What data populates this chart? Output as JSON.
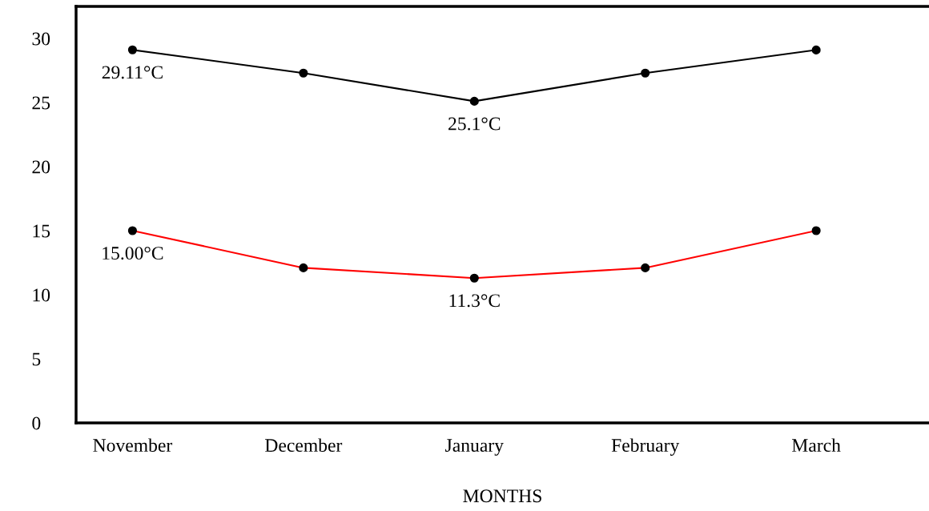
{
  "chart_data": {
    "type": "line",
    "xlabel": "MONTHS",
    "categories": [
      "November",
      "December",
      "January",
      "February",
      "March"
    ],
    "series": [
      {
        "color": "#000000",
        "values": [
          29.11,
          27.3,
          25.1,
          27.3,
          29.1
        ],
        "value_labels": [
          "29.11°C",
          null,
          "25.1°C",
          null,
          null
        ]
      },
      {
        "color": "#ff0000",
        "values": [
          15.0,
          12.1,
          11.3,
          12.1,
          15.0
        ],
        "value_labels": [
          "15.00°C",
          null,
          "11.3°C",
          null,
          null
        ]
      }
    ],
    "ylim": [
      0,
      32.5
    ],
    "yticks": [
      0,
      5,
      10,
      15,
      20,
      25,
      30
    ],
    "marker": "circle",
    "line_style": "solid",
    "grid": false,
    "legend": false
  }
}
